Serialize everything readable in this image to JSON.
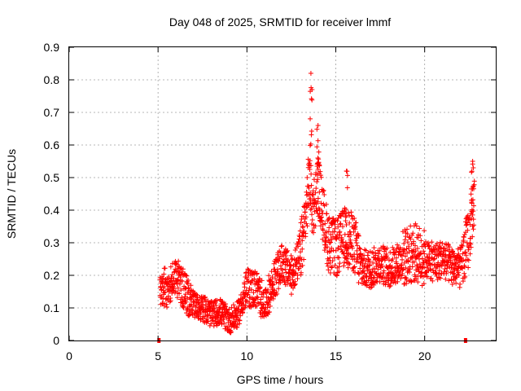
{
  "chart_data": {
    "type": "scatter",
    "title": "Day 048 of 2025, SRMTID for receiver lmmf",
    "xlabel": "GPS time / hours",
    "ylabel": "SRMTID / TECUs",
    "xlim": [
      0,
      24
    ],
    "ylim": [
      0,
      0.9
    ],
    "xticks": [
      0,
      5,
      10,
      15,
      20
    ],
    "yticks": [
      0,
      0.1,
      0.2,
      0.3,
      0.4,
      0.5,
      0.6,
      0.7,
      0.8,
      0.9
    ],
    "grid": true,
    "marker": "+",
    "color": "#ff0000",
    "series": [
      {
        "name": "SRMTID",
        "profile": [
          {
            "x": 5.1,
            "y": 0.17
          },
          {
            "x": 5.5,
            "y": 0.16
          },
          {
            "x": 6.0,
            "y": 0.2
          },
          {
            "x": 6.5,
            "y": 0.15
          },
          {
            "x": 7.0,
            "y": 0.11
          },
          {
            "x": 7.5,
            "y": 0.1
          },
          {
            "x": 8.0,
            "y": 0.08
          },
          {
            "x": 8.5,
            "y": 0.09
          },
          {
            "x": 9.0,
            "y": 0.06
          },
          {
            "x": 9.5,
            "y": 0.08
          },
          {
            "x": 10.0,
            "y": 0.16
          },
          {
            "x": 10.5,
            "y": 0.16
          },
          {
            "x": 11.0,
            "y": 0.11
          },
          {
            "x": 11.5,
            "y": 0.18
          },
          {
            "x": 12.0,
            "y": 0.24
          },
          {
            "x": 12.5,
            "y": 0.2
          },
          {
            "x": 13.0,
            "y": 0.26
          },
          {
            "x": 13.3,
            "y": 0.38
          },
          {
            "x": 13.5,
            "y": 0.5
          },
          {
            "x": 13.7,
            "y": 0.4
          },
          {
            "x": 14.0,
            "y": 0.48
          },
          {
            "x": 14.3,
            "y": 0.38
          },
          {
            "x": 14.6,
            "y": 0.3
          },
          {
            "x": 15.0,
            "y": 0.28
          },
          {
            "x": 15.5,
            "y": 0.32
          },
          {
            "x": 16.0,
            "y": 0.3
          },
          {
            "x": 16.5,
            "y": 0.22
          },
          {
            "x": 17.0,
            "y": 0.22
          },
          {
            "x": 17.5,
            "y": 0.24
          },
          {
            "x": 18.0,
            "y": 0.22
          },
          {
            "x": 18.5,
            "y": 0.24
          },
          {
            "x": 19.0,
            "y": 0.26
          },
          {
            "x": 19.5,
            "y": 0.27
          },
          {
            "x": 20.0,
            "y": 0.25
          },
          {
            "x": 20.5,
            "y": 0.24
          },
          {
            "x": 21.0,
            "y": 0.25
          },
          {
            "x": 21.5,
            "y": 0.23
          },
          {
            "x": 22.0,
            "y": 0.22
          },
          {
            "x": 22.5,
            "y": 0.32
          },
          {
            "x": 22.8,
            "y": 0.45
          }
        ],
        "peaks": [
          {
            "x": 13.6,
            "y": 0.82
          },
          {
            "x": 14.0,
            "y": 0.66
          },
          {
            "x": 15.6,
            "y": 0.52
          },
          {
            "x": 22.7,
            "y": 0.55
          }
        ],
        "baseline_markers": [
          {
            "x": 5.05,
            "y": 0.0
          },
          {
            "x": 22.3,
            "y": 0.0
          }
        ]
      }
    ]
  }
}
